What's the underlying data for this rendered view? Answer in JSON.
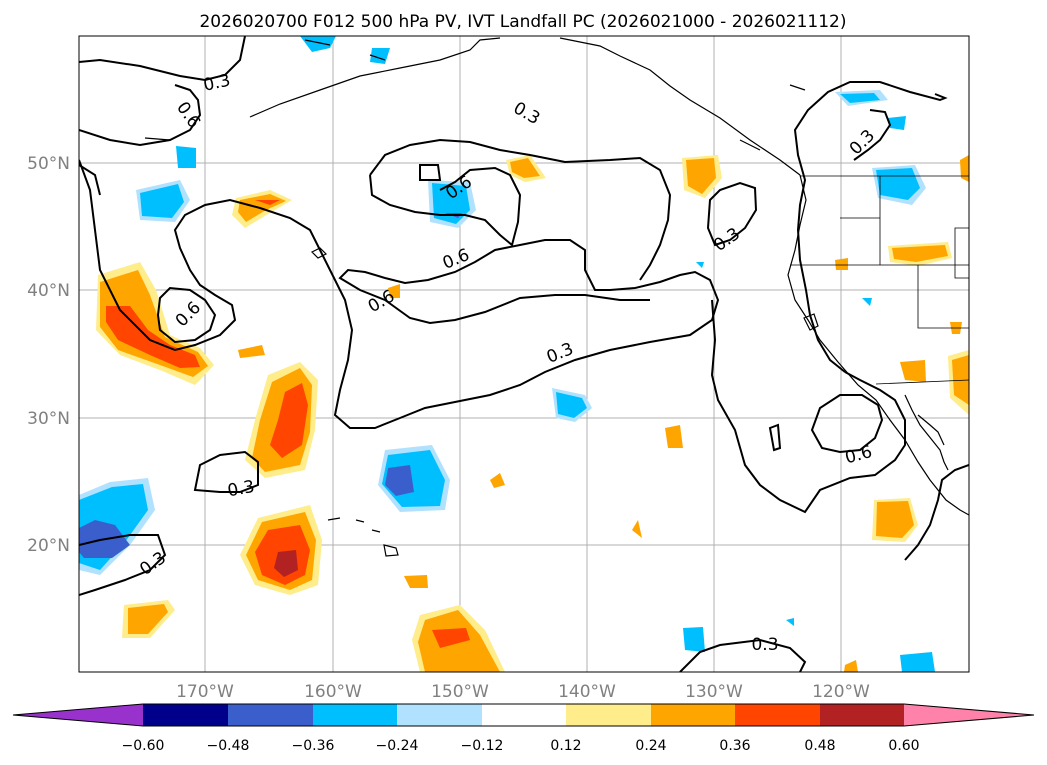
{
  "title": "2026020700 F012 500 hPa PV, IVT Landfall PC (2026021000 - 2026021112)",
  "colors": {
    "c_lt_neg_060": "#9932cc",
    "c_neg_060_048": "#00008b",
    "c_neg_048_036": "#3a5fcd",
    "c_neg_036_024": "#00bfff",
    "c_neg_024_012": "#b0e2ff",
    "c_neg_012_012": "#ffffff",
    "c_012_024": "#ffec8b",
    "c_024_036": "#ffa500",
    "c_036_048": "#ff4500",
    "c_048_060": "#b22222",
    "c_gt_060": "#ff82ab"
  },
  "map": {
    "lon_ticks": [
      "170°W",
      "160°W",
      "150°W",
      "140°W",
      "130°W",
      "120°W"
    ],
    "lat_ticks": [
      "50°N",
      "40°N",
      "30°N",
      "20°N"
    ]
  },
  "colorbar": {
    "ticks": [
      "−0.60",
      "−0.48",
      "−0.36",
      "−0.24",
      "−0.12",
      "0.12",
      "0.24",
      "0.36",
      "0.48",
      "0.60"
    ]
  },
  "contour_labels": {
    "a": "0.3",
    "b": "0.6",
    "c": "0.3",
    "d": "0.6",
    "e": "0.6",
    "f": "0.6",
    "g": "0.3",
    "h": "0.3",
    "i": "0.6",
    "j": "0.3",
    "k": "0.6",
    "l": "0.3",
    "m": "0.3",
    "n": "0.3"
  }
}
